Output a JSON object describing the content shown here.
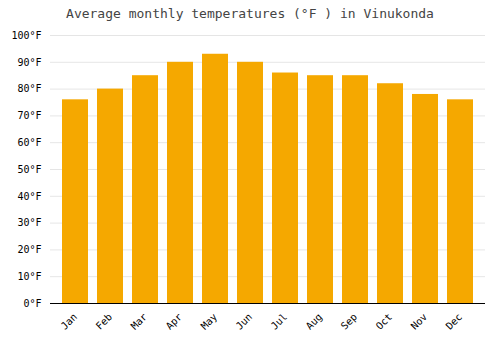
{
  "chart_data": {
    "type": "bar",
    "title": "Average monthly temperatures (°F ) in Vinukonda",
    "categories": [
      "Jan",
      "Feb",
      "Mar",
      "Apr",
      "May",
      "Jun",
      "Jul",
      "Aug",
      "Sep",
      "Oct",
      "Nov",
      "Dec"
    ],
    "values": [
      76,
      80,
      85,
      90,
      93,
      90,
      86,
      85,
      85,
      82,
      78,
      76
    ],
    "color": "#F5A800",
    "ylim": [
      0,
      100
    ],
    "yticks": [
      {
        "value": 0,
        "label": "0°F"
      },
      {
        "value": 10,
        "label": "10°F"
      },
      {
        "value": 20,
        "label": "20°F"
      },
      {
        "value": 30,
        "label": "30°F"
      },
      {
        "value": 40,
        "label": "40°F"
      },
      {
        "value": 50,
        "label": "50°F"
      },
      {
        "value": 60,
        "label": "60°F"
      },
      {
        "value": 70,
        "label": "70°F"
      },
      {
        "value": 80,
        "label": "80°F"
      },
      {
        "value": 90,
        "label": "90°F"
      },
      {
        "value": 100,
        "label": "100°F"
      }
    ],
    "grid": true
  }
}
